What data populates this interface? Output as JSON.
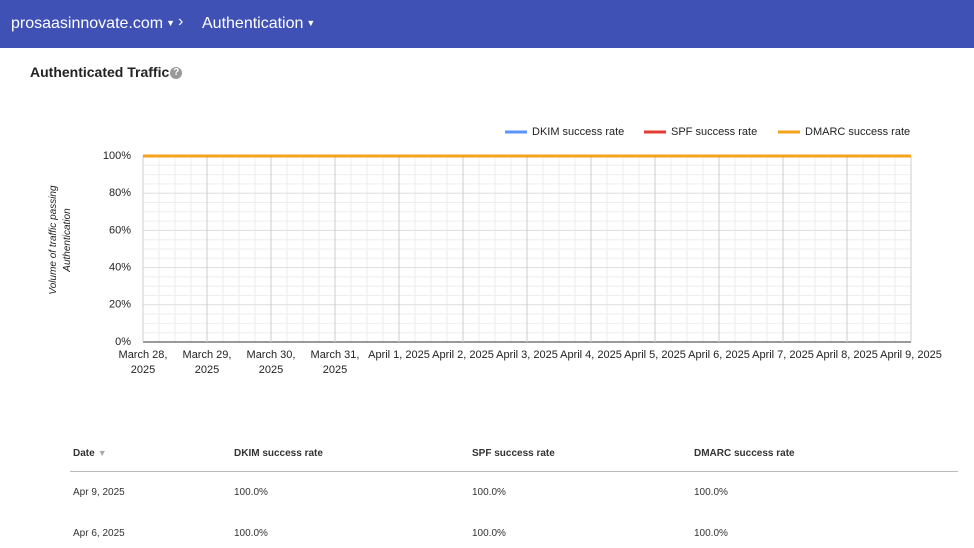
{
  "header": {
    "breadcrumb": [
      "prosaasinnovate.com",
      "Authentication"
    ]
  },
  "section": {
    "title": "Authenticated Traffic"
  },
  "chart_data": {
    "type": "line",
    "y_label": "Volume of traffic passing Authentication",
    "categories": [
      "March 28, 2025",
      "March 29, 2025",
      "March 30, 2025",
      "March 31, 2025",
      "April 1, 2025",
      "April 2, 2025",
      "April 3, 2025",
      "April 4, 2025",
      "April 5, 2025",
      "April 6, 2025",
      "April 7, 2025",
      "April 8, 2025",
      "April 9, 2025"
    ],
    "series": [
      {
        "name": "DKIM success rate",
        "color": "#5b95f9",
        "values": [
          100,
          100,
          100,
          100,
          100,
          100,
          100,
          100,
          100,
          100,
          100,
          100,
          100
        ]
      },
      {
        "name": "SPF success rate",
        "color": "#e53935",
        "values": [
          100,
          100,
          100,
          100,
          100,
          100,
          100,
          100,
          100,
          100,
          100,
          100,
          100
        ]
      },
      {
        "name": "DMARC success rate",
        "color": "#f5a31a",
        "values": [
          100,
          100,
          100,
          100,
          100,
          100,
          100,
          100,
          100,
          100,
          100,
          100,
          100
        ]
      }
    ],
    "ylim": [
      0,
      100
    ],
    "yticks": [
      {
        "value": 0,
        "label": "0%"
      },
      {
        "value": 20,
        "label": "20%"
      },
      {
        "value": 40,
        "label": "40%"
      },
      {
        "value": 60,
        "label": "60%"
      },
      {
        "value": 80,
        "label": "80%"
      },
      {
        "value": 100,
        "label": "100%"
      }
    ],
    "grid": true,
    "legend": "top-right"
  },
  "table": {
    "columns": [
      "Date",
      "DKIM success rate",
      "SPF success rate",
      "DMARC success rate"
    ],
    "rows": [
      [
        "Apr 9, 2025",
        "100.0%",
        "100.0%",
        "100.0%"
      ],
      [
        "Apr 6, 2025",
        "100.0%",
        "100.0%",
        "100.0%"
      ]
    ]
  }
}
